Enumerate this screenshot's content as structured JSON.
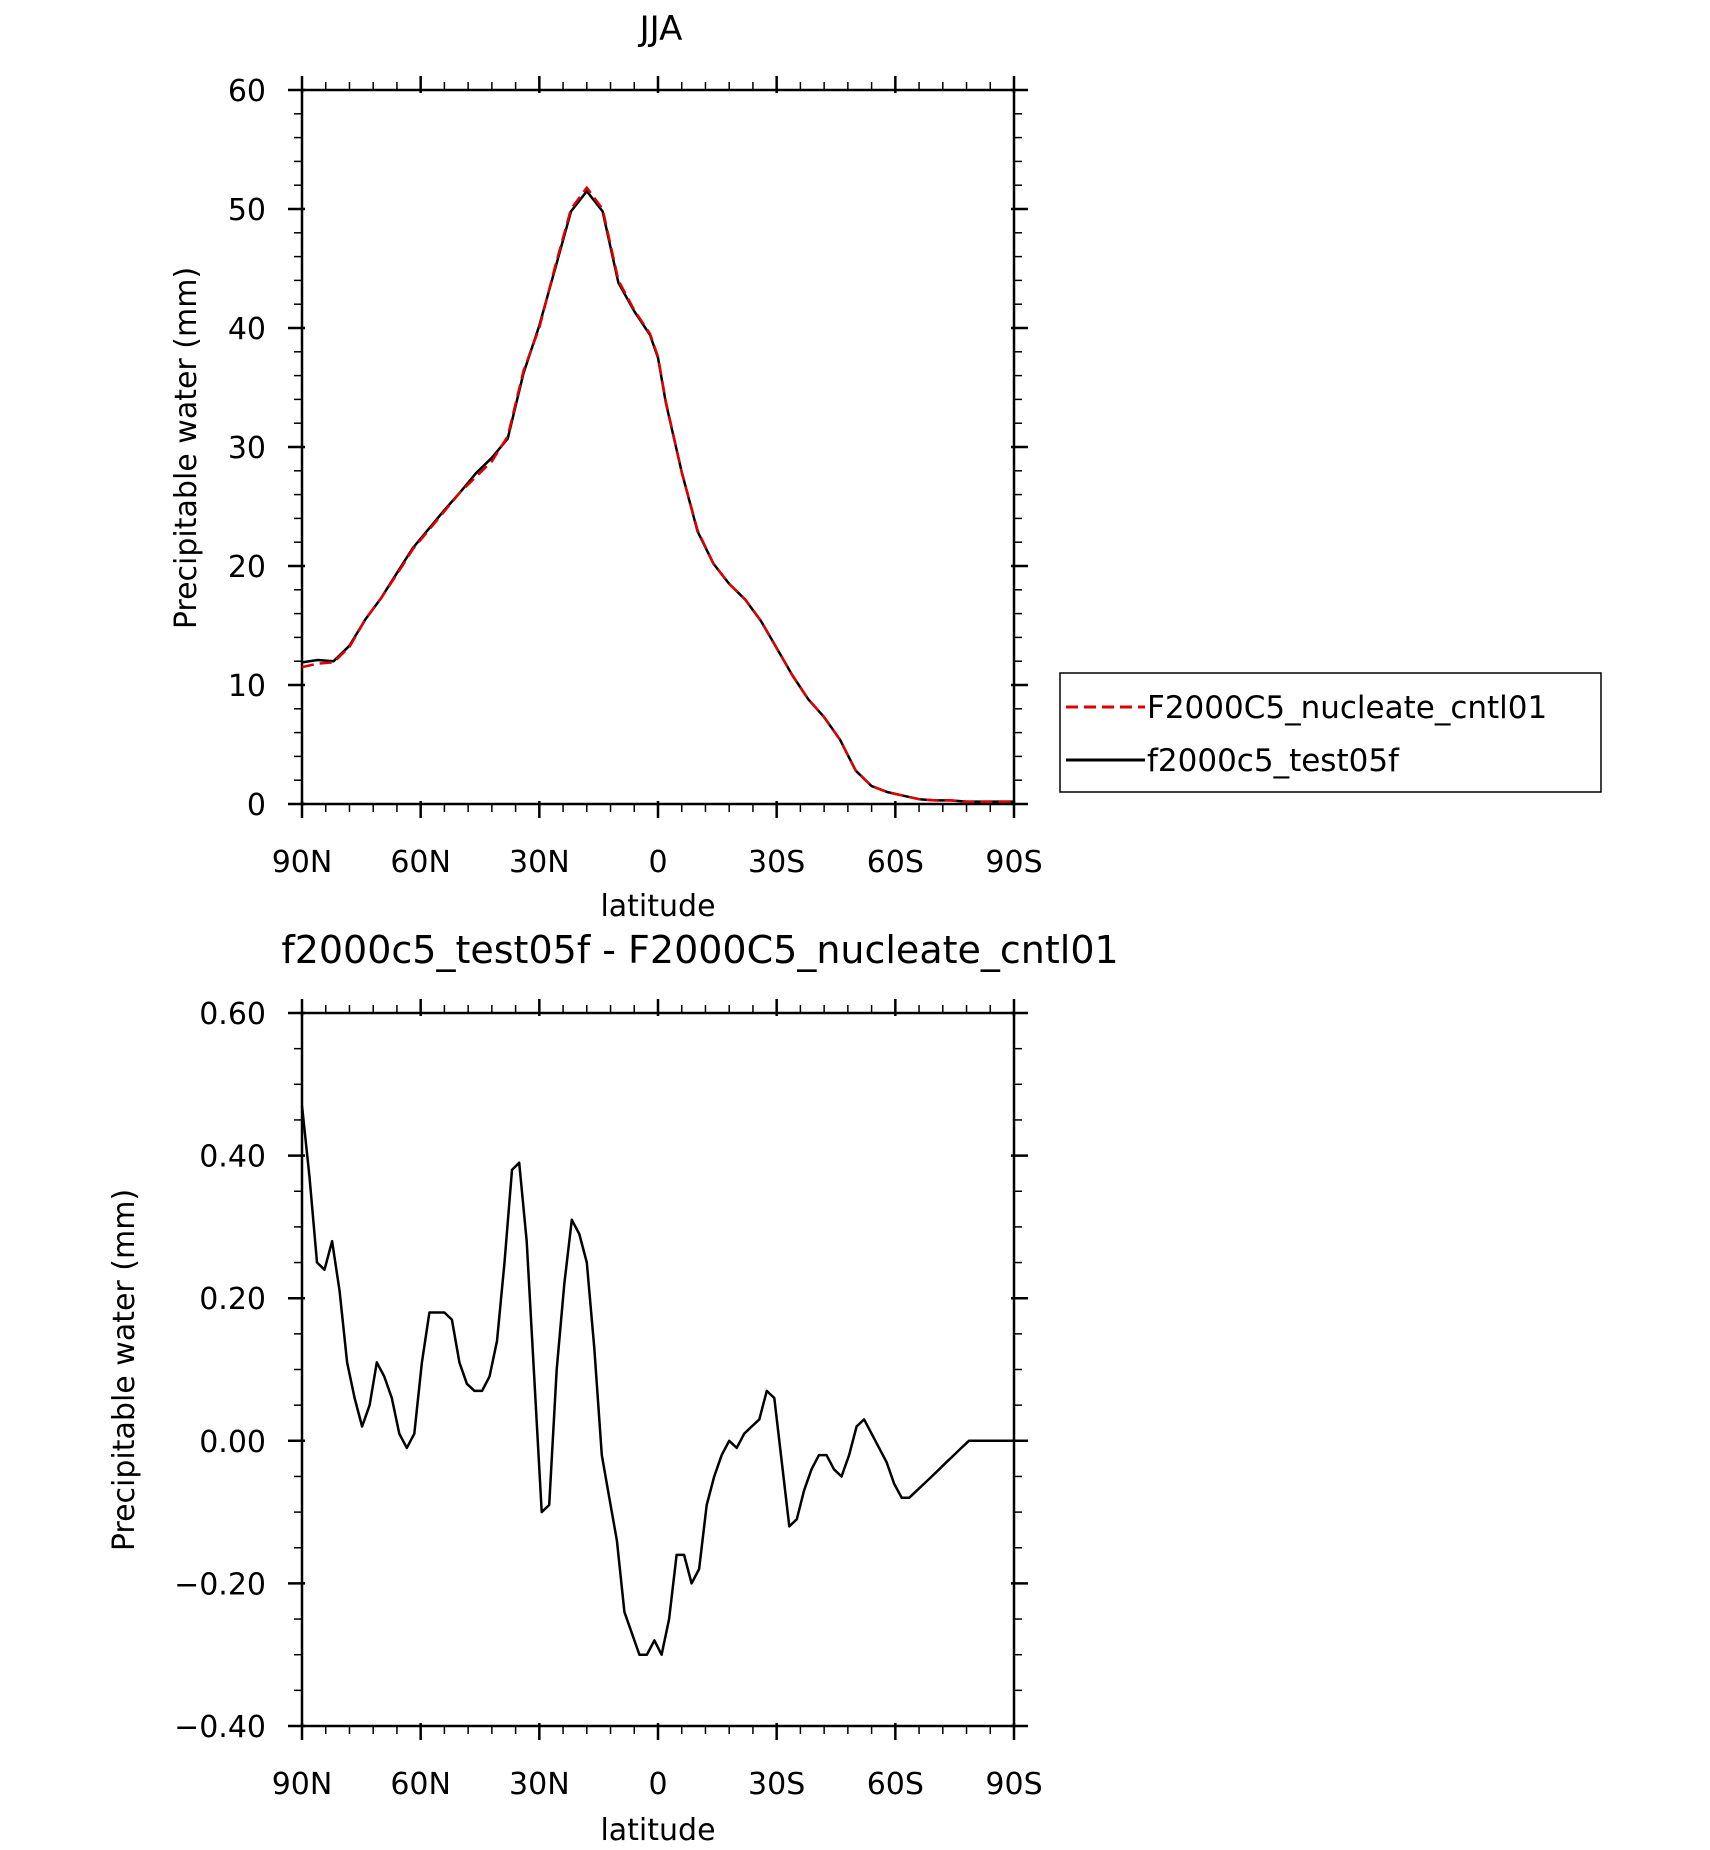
{
  "chart_data": [
    {
      "type": "line",
      "title": "JJA",
      "xlabel": "latitude",
      "ylabel": "Precipitable water (mm)",
      "xlim": [
        90,
        -90
      ],
      "ylim": [
        0,
        60
      ],
      "xticks": [
        {
          "value": 90,
          "label": "90N"
        },
        {
          "value": 60,
          "label": "60N"
        },
        {
          "value": 30,
          "label": "30N"
        },
        {
          "value": 0,
          "label": "0"
        },
        {
          "value": -30,
          "label": "30S"
        },
        {
          "value": -60,
          "label": "60S"
        },
        {
          "value": -90,
          "label": "90S"
        }
      ],
      "yticks": [
        0,
        10,
        20,
        30,
        40,
        50,
        60
      ],
      "ytick_labels": [
        "0",
        "10",
        "20",
        "30",
        "40",
        "50",
        "60"
      ],
      "legend": {
        "placement": "outside-right",
        "entries": [
          "F2000C5_nucleate_cntl01",
          "f2000c5_test05f"
        ]
      },
      "series": [
        {
          "name": "F2000C5_nucleate_cntl01",
          "color": "#e00000",
          "dash": "dashed",
          "x": [
            90,
            86,
            82,
            78,
            74,
            70,
            66,
            62,
            58,
            54,
            50,
            46,
            42,
            38,
            34,
            30,
            26,
            22,
            18,
            14,
            10,
            6,
            2,
            0,
            -2,
            -6,
            -10,
            -14,
            -18,
            -22,
            -26,
            -30,
            -34,
            -38,
            -42,
            -46,
            -50,
            -54,
            -58,
            -62,
            -66,
            -70,
            -74,
            -78,
            -82,
            -86,
            -90
          ],
          "y": [
            11.5,
            11.8,
            11.9,
            13.2,
            15.5,
            17.3,
            19.3,
            21.4,
            23.0,
            24.6,
            26.2,
            27.5,
            28.8,
            30.9,
            36.4,
            40.0,
            45.2,
            50.0,
            51.8,
            50.0,
            44.0,
            41.5,
            39.5,
            37.6,
            33.8,
            27.9,
            23.0,
            20.2,
            18.5,
            17.2,
            15.4,
            13.1,
            10.8,
            8.8,
            7.3,
            5.4,
            2.8,
            1.5,
            1.0,
            0.7,
            0.4,
            0.3,
            0.3,
            0.2,
            0.2,
            0.2,
            0.2
          ],
          "note": ""
        },
        {
          "name": "f2000c5_test05f",
          "color": "#000000",
          "dash": "solid",
          "x": [
            90,
            86,
            82,
            78,
            74,
            70,
            66,
            62,
            58,
            54,
            50,
            46,
            42,
            38,
            34,
            30,
            26,
            22,
            18,
            14,
            10,
            6,
            2,
            0,
            -2,
            -6,
            -10,
            -14,
            -18,
            -22,
            -26,
            -30,
            -34,
            -38,
            -42,
            -46,
            -50,
            -54,
            -58,
            -62,
            -66,
            -70,
            -74,
            -78,
            -82,
            -86,
            -90
          ],
          "y": [
            11.9,
            12.1,
            12.0,
            13.3,
            15.5,
            17.3,
            19.4,
            21.5,
            23.1,
            24.7,
            26.2,
            27.8,
            29.1,
            30.7,
            36.2,
            40.2,
            45.0,
            49.8,
            51.5,
            49.8,
            43.8,
            41.4,
            39.4,
            37.5,
            33.7,
            27.9,
            22.9,
            20.2,
            18.5,
            17.2,
            15.4,
            13.1,
            10.8,
            8.8,
            7.3,
            5.4,
            2.8,
            1.5,
            1.0,
            0.7,
            0.4,
            0.3,
            0.3,
            0.2,
            0.2,
            0.2,
            0.2
          ]
        }
      ]
    },
    {
      "type": "line",
      "title": "f2000c5_test05f - F2000C5_nucleate_cntl01",
      "xlabel": "latitude",
      "ylabel": "Precipitable water (mm)",
      "xlim": [
        90,
        -90
      ],
      "ylim": [
        -0.4,
        0.6
      ],
      "xticks": [
        {
          "value": 90,
          "label": "90N"
        },
        {
          "value": 60,
          "label": "60N"
        },
        {
          "value": 30,
          "label": "30N"
        },
        {
          "value": 0,
          "label": "0"
        },
        {
          "value": -30,
          "label": "30S"
        },
        {
          "value": -60,
          "label": "60S"
        },
        {
          "value": -90,
          "label": "90S"
        }
      ],
      "yticks": [
        -0.4,
        -0.2,
        0.0,
        0.2,
        0.4,
        0.6
      ],
      "ytick_labels": [
        "−0.40",
        "−0.20",
        "0.00",
        "0.20",
        "0.40",
        "0.60"
      ],
      "series": [
        {
          "color": "#000000",
          "dash": "solid",
          "x": [
            90,
            88.1,
            86.2,
            84.3,
            82.4,
            80.5,
            78.6,
            76.7,
            74.8,
            72.9,
            71.1,
            69.2,
            67.3,
            65.4,
            63.5,
            61.6,
            59.7,
            57.8,
            55.9,
            54.0,
            52.1,
            50.2,
            48.3,
            46.4,
            44.5,
            42.6,
            40.7,
            38.8,
            36.9,
            35.1,
            33.2,
            31.3,
            29.4,
            27.5,
            25.6,
            23.7,
            21.8,
            19.9,
            18.0,
            16.1,
            14.2,
            12.3,
            10.4,
            8.5,
            6.6,
            4.7,
            2.8,
            0.9,
            -0.9,
            -2.8,
            -4.7,
            -6.6,
            -8.5,
            -10.4,
            -12.3,
            -14.2,
            -16.1,
            -18.0,
            -19.9,
            -21.8,
            -23.7,
            -25.6,
            -27.5,
            -29.4,
            -31.3,
            -33.2,
            -35.1,
            -36.9,
            -38.8,
            -40.7,
            -42.6,
            -44.5,
            -46.4,
            -48.3,
            -50.2,
            -52.1,
            -54.0,
            -55.9,
            -57.8,
            -59.7,
            -61.6,
            -63.5,
            -65.4,
            -67.3,
            -69.2,
            -71.1,
            -72.9,
            -74.8,
            -76.7,
            -78.6,
            -80.5,
            -82.4,
            -84.3,
            -86.2,
            -88.1,
            -90
          ],
          "y": [
            0.47,
            0.37,
            0.25,
            0.24,
            0.28,
            0.21,
            0.11,
            0.06,
            0.02,
            0.05,
            0.11,
            0.09,
            0.06,
            0.01,
            -0.01,
            0.01,
            0.11,
            0.18,
            0.18,
            0.18,
            0.17,
            0.11,
            0.08,
            0.07,
            0.07,
            0.09,
            0.14,
            0.25,
            0.38,
            0.39,
            0.28,
            0.09,
            -0.1,
            -0.09,
            0.1,
            0.22,
            0.31,
            0.29,
            0.25,
            0.13,
            -0.02,
            -0.08,
            -0.14,
            -0.24,
            -0.27,
            -0.3,
            -0.3,
            -0.28,
            -0.3,
            -0.25,
            -0.16,
            -0.16,
            -0.2,
            -0.18,
            -0.09,
            -0.05,
            -0.02,
            0.0,
            -0.01,
            0.01,
            0.02,
            0.03,
            0.07,
            0.06,
            -0.03,
            -0.12,
            -0.11,
            -0.07,
            -0.04,
            -0.02,
            -0.02,
            -0.04,
            -0.05,
            -0.02,
            0.02,
            0.03,
            0.01,
            -0.01,
            -0.03,
            -0.06,
            -0.08,
            -0.08,
            -0.07,
            -0.06,
            -0.05,
            -0.04,
            -0.03,
            -0.02,
            -0.01,
            0.0,
            0.0,
            0.0,
            0.0,
            0.0,
            0.0,
            0.0
          ]
        }
      ]
    }
  ]
}
